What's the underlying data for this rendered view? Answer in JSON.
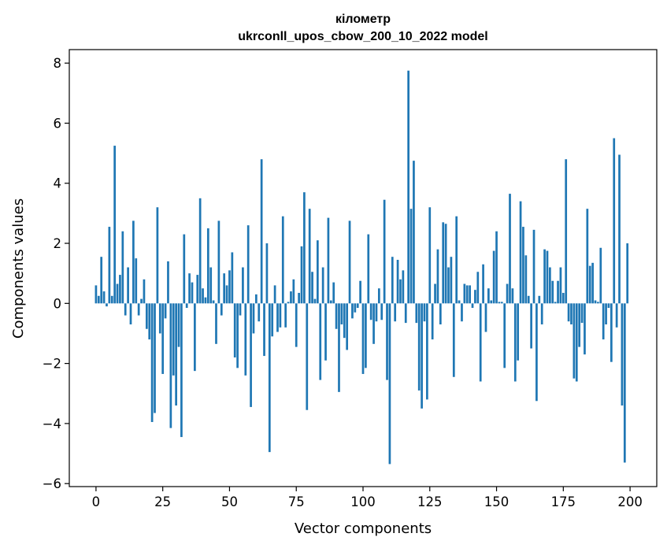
{
  "chart_data": {
    "type": "bar",
    "title_lines": [
      "кілометр",
      "ukrconll_upos_cbow_200_10_2022 model"
    ],
    "xlabel": "Vector components",
    "ylabel": "Components values",
    "xlim": [
      -10,
      210
    ],
    "ylim": [
      -6.1,
      8.45
    ],
    "xticks": [
      0,
      25,
      50,
      75,
      100,
      125,
      150,
      175,
      200
    ],
    "xtick_labels": [
      "0",
      "25",
      "50",
      "75",
      "100",
      "125",
      "150",
      "175",
      "200"
    ],
    "yticks": [
      -6,
      -4,
      -2,
      0,
      2,
      4,
      6,
      8
    ],
    "ytick_labels": [
      "−6",
      "−4",
      "−2",
      "0",
      "2",
      "4",
      "6",
      "8"
    ],
    "grid": false,
    "bar_color": "#1f77b4",
    "values": [
      0.6,
      0.25,
      1.55,
      0.4,
      -0.1,
      2.55,
      0.25,
      5.25,
      0.65,
      0.95,
      2.4,
      -0.4,
      1.2,
      -0.7,
      2.75,
      1.5,
      -0.4,
      0.15,
      0.8,
      -0.85,
      -1.2,
      -3.95,
      -3.65,
      3.2,
      -1.0,
      -2.35,
      -0.5,
      1.4,
      -4.15,
      -2.4,
      -3.4,
      -1.45,
      -4.45,
      2.3,
      -0.15,
      1.0,
      0.7,
      -2.25,
      0.95,
      3.5,
      0.5,
      0.2,
      2.5,
      1.2,
      0.1,
      -1.35,
      2.75,
      -0.4,
      1.0,
      0.6,
      1.1,
      1.7,
      -1.8,
      -2.15,
      -0.4,
      1.2,
      -2.4,
      2.6,
      -3.45,
      -1.0,
      0.3,
      -0.6,
      4.8,
      -1.75,
      2.0,
      -4.95,
      -1.1,
      0.6,
      -0.95,
      -0.8,
      2.9,
      -0.8,
      0.05,
      0.4,
      0.8,
      -1.45,
      0.35,
      1.9,
      3.7,
      -3.55,
      3.15,
      1.05,
      0.15,
      2.1,
      -2.55,
      1.2,
      -1.9,
      2.85,
      0.1,
      0.7,
      -0.85,
      -2.95,
      -0.7,
      -1.15,
      -1.55,
      2.75,
      -0.5,
      -0.3,
      -0.15,
      0.75,
      -2.35,
      -2.15,
      2.3,
      -0.55,
      -1.35,
      -0.6,
      0.5,
      -0.55,
      3.45,
      -2.55,
      -5.35,
      1.55,
      -0.6,
      1.45,
      0.8,
      1.1,
      -0.65,
      7.75,
      3.15,
      4.75,
      -0.65,
      -2.9,
      -3.5,
      -0.6,
      -3.2,
      3.2,
      -1.2,
      0.65,
      1.8,
      -0.7,
      2.7,
      2.65,
      1.2,
      1.55,
      -2.45,
      2.9,
      0.1,
      -0.6,
      0.65,
      0.6,
      0.6,
      -0.15,
      0.45,
      1.05,
      -2.6,
      1.3,
      -0.95,
      0.5,
      0.1,
      1.75,
      2.4,
      0.05,
      0.05,
      -2.15,
      0.65,
      3.65,
      0.5,
      -2.6,
      -1.9,
      3.4,
      2.55,
      1.6,
      0.25,
      -1.5,
      2.45,
      -3.25,
      0.25,
      -0.7,
      1.8,
      1.75,
      1.2,
      0.75,
      0.05,
      0.75,
      1.2,
      0.35,
      4.8,
      -0.6,
      -0.7,
      -2.5,
      -2.6,
      -1.45,
      -0.65,
      -1.7,
      3.15,
      1.25,
      1.35,
      0.1,
      0.05,
      1.85,
      -1.2,
      -0.7,
      -0.15,
      -1.95,
      5.5,
      -0.8,
      4.95,
      -3.4,
      -5.3,
      2.0
    ]
  }
}
